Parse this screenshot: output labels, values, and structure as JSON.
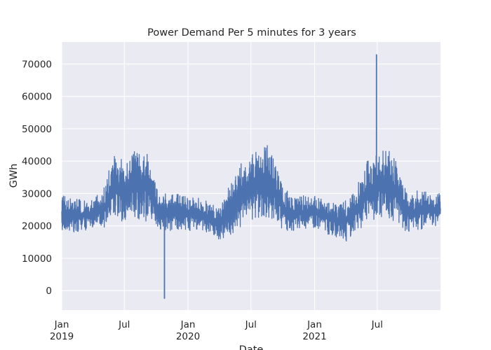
{
  "chart_data": {
    "type": "line",
    "title": "Power Demand Per 5 minutes for 3 years",
    "xlabel": "Date",
    "ylabel": "GWh",
    "x_range": [
      "2019-01-01",
      "2021-12-31"
    ],
    "ylim": [
      -6000,
      76800
    ],
    "y_ticks": [
      0,
      10000,
      20000,
      30000,
      40000,
      50000,
      60000,
      70000
    ],
    "y_tick_labels": [
      "0",
      "10000",
      "20000",
      "30000",
      "40000",
      "50000",
      "60000",
      "70000"
    ],
    "x_ticks": [
      {
        "date": "2019-01-01",
        "label": "Jan",
        "sublabel": "2019"
      },
      {
        "date": "2019-07-01",
        "label": "Jul",
        "sublabel": ""
      },
      {
        "date": "2020-01-01",
        "label": "Jan",
        "sublabel": "2020"
      },
      {
        "date": "2020-07-01",
        "label": "Jul",
        "sublabel": ""
      },
      {
        "date": "2021-01-01",
        "label": "Jan",
        "sublabel": "2021"
      },
      {
        "date": "2021-07-01",
        "label": "Jul",
        "sublabel": ""
      }
    ],
    "grid": true,
    "colors": {
      "background": "#eaeaf2",
      "line": "#4c72b0",
      "grid": "#ffffff"
    },
    "series": [
      {
        "points": [
          {
            "date": "2019-01-01",
            "low": 18500,
            "high": 29500
          },
          {
            "date": "2019-02-01",
            "low": 18000,
            "high": 28500
          },
          {
            "date": "2019-03-01",
            "low": 18500,
            "high": 28000
          },
          {
            "date": "2019-04-01",
            "low": 19000,
            "high": 28500
          },
          {
            "date": "2019-05-01",
            "low": 19500,
            "high": 31000
          },
          {
            "date": "2019-06-01",
            "low": 20500,
            "high": 42500
          },
          {
            "date": "2019-07-01",
            "low": 21500,
            "high": 40000
          },
          {
            "date": "2019-08-01",
            "low": 22000,
            "high": 44300
          },
          {
            "date": "2019-09-01",
            "low": 21500,
            "high": 43500
          },
          {
            "date": "2019-10-01",
            "low": 19000,
            "high": 33000
          },
          {
            "date": "2019-11-01",
            "low": 18500,
            "high": 29500
          },
          {
            "date": "2019-12-01",
            "low": 18000,
            "high": 30000
          },
          {
            "date": "2020-01-01",
            "low": 18500,
            "high": 29000
          },
          {
            "date": "2020-02-01",
            "low": 18500,
            "high": 29000
          },
          {
            "date": "2020-03-01",
            "low": 18000,
            "high": 27500
          },
          {
            "date": "2020-04-01",
            "low": 15500,
            "high": 25500
          },
          {
            "date": "2020-05-01",
            "low": 16500,
            "high": 33000
          },
          {
            "date": "2020-06-01",
            "low": 19500,
            "high": 40000
          },
          {
            "date": "2020-07-01",
            "low": 21000,
            "high": 41500
          },
          {
            "date": "2020-08-01",
            "low": 22500,
            "high": 47000
          },
          {
            "date": "2020-09-01",
            "low": 21500,
            "high": 43500
          },
          {
            "date": "2020-10-01",
            "low": 18500,
            "high": 32000
          },
          {
            "date": "2020-11-01",
            "low": 18500,
            "high": 29000
          },
          {
            "date": "2020-12-01",
            "low": 19000,
            "high": 29500
          },
          {
            "date": "2021-01-01",
            "low": 19000,
            "high": 29500
          },
          {
            "date": "2021-02-01",
            "low": 17500,
            "high": 28500
          },
          {
            "date": "2021-03-01",
            "low": 16500,
            "high": 27000
          },
          {
            "date": "2021-04-01",
            "low": 15000,
            "high": 28000
          },
          {
            "date": "2021-05-01",
            "low": 17500,
            "high": 32000
          },
          {
            "date": "2021-06-01",
            "low": 21000,
            "high": 40000
          },
          {
            "date": "2021-07-01",
            "low": 22500,
            "high": 43000
          },
          {
            "date": "2021-08-01",
            "low": 22000,
            "high": 44000
          },
          {
            "date": "2021-09-01",
            "low": 19500,
            "high": 38500
          },
          {
            "date": "2021-10-01",
            "low": 18000,
            "high": 29500
          },
          {
            "date": "2021-11-01",
            "low": 18500,
            "high": 31500
          },
          {
            "date": "2021-12-01",
            "low": 19500,
            "high": 30000
          }
        ],
        "spikes": [
          {
            "date": "2019-10-25",
            "value": -2500
          },
          {
            "date": "2021-06-29",
            "value": 73000
          }
        ]
      }
    ]
  }
}
